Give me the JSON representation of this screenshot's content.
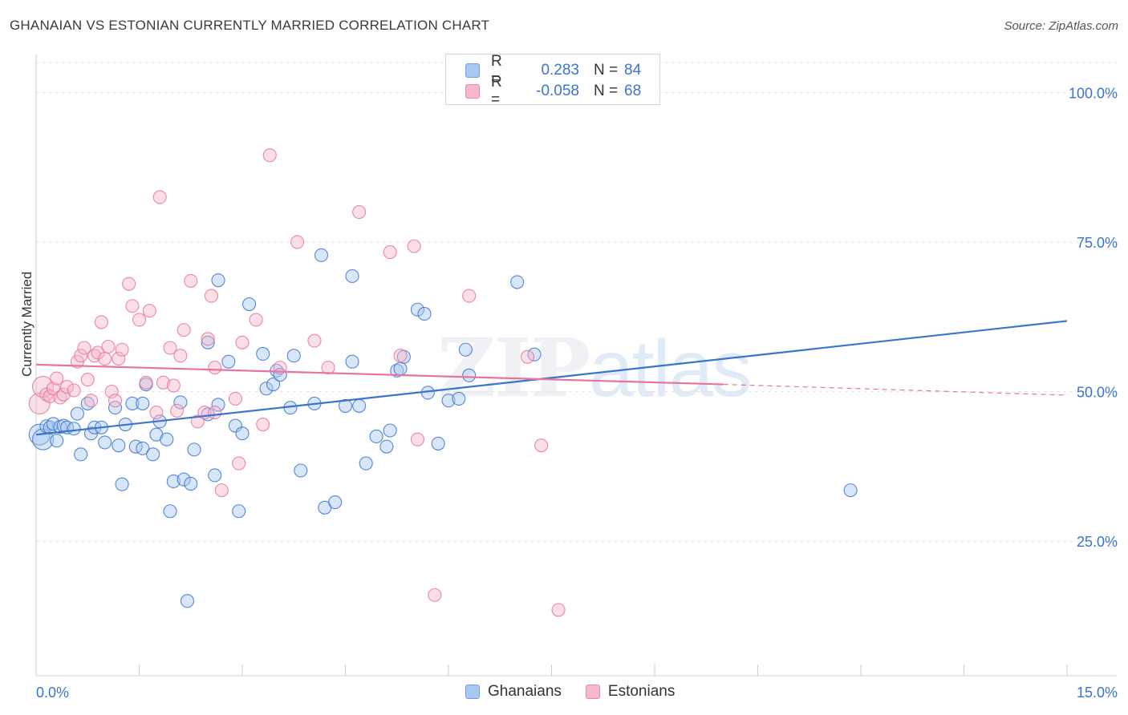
{
  "header": {
    "title": "GHANAIAN VS ESTONIAN CURRENTLY MARRIED CORRELATION CHART",
    "source": "Source: ZipAtlas.com"
  },
  "watermark": {
    "zip": "ZIP",
    "atlas": "atlas"
  },
  "legend": {
    "rows": [
      {
        "r_label": "R =",
        "r_value": "0.283",
        "n_label": "N =",
        "n_value": "84",
        "color": "#a9c8f0"
      },
      {
        "r_label": "R =",
        "r_value": "-0.058",
        "n_label": "N =",
        "n_value": "68",
        "color": "#f5b8cc"
      }
    ]
  },
  "bottom_legend": {
    "items": [
      {
        "label": "Ghanaians",
        "color": "#a9c8f0"
      },
      {
        "label": "Estonians",
        "color": "#f5b8cc"
      }
    ]
  },
  "chart_data": {
    "type": "scatter",
    "title": "GHANAIAN VS ESTONIAN CURRENTLY MARRIED CORRELATION CHART",
    "xlabel": "",
    "ylabel": "Currently Married",
    "xlim": [
      0,
      15
    ],
    "ylim": [
      2.5,
      105
    ],
    "x_tick_labels": [
      "0.0%",
      "15.0%"
    ],
    "y_ticks": [
      25,
      50,
      75,
      100
    ],
    "y_tick_labels": [
      "25.0%",
      "50.0%",
      "75.0%",
      "100.0%"
    ],
    "series": [
      {
        "name": "Ghanaians",
        "color": "#3a74cf",
        "fill": "#a9c8f0",
        "trend": {
          "x": [
            0,
            15
          ],
          "y": [
            42.8,
            61.8
          ]
        },
        "points": [
          [
            0.05,
            42.8
          ],
          [
            0.1,
            42.0
          ],
          [
            0.15,
            44.2
          ],
          [
            0.2,
            44.0
          ],
          [
            0.25,
            44.6
          ],
          [
            0.3,
            41.8
          ],
          [
            0.35,
            44.1
          ],
          [
            0.4,
            44.3
          ],
          [
            0.45,
            44.0
          ],
          [
            0.55,
            43.8
          ],
          [
            0.6,
            46.3
          ],
          [
            0.75,
            48.0
          ],
          [
            0.65,
            39.5
          ],
          [
            0.8,
            43.0
          ],
          [
            0.85,
            44.0
          ],
          [
            0.95,
            44.0
          ],
          [
            1.0,
            41.5
          ],
          [
            1.15,
            47.3
          ],
          [
            1.2,
            41.0
          ],
          [
            1.25,
            34.5
          ],
          [
            1.3,
            44.5
          ],
          [
            1.4,
            48.0
          ],
          [
            1.45,
            40.8
          ],
          [
            1.55,
            40.5
          ],
          [
            1.55,
            48.0
          ],
          [
            1.6,
            51.2
          ],
          [
            1.7,
            39.5
          ],
          [
            1.75,
            42.8
          ],
          [
            1.8,
            45.0
          ],
          [
            1.9,
            42.0
          ],
          [
            1.95,
            30.0
          ],
          [
            2.0,
            35.0
          ],
          [
            2.1,
            48.2
          ],
          [
            2.15,
            35.3
          ],
          [
            2.25,
            34.6
          ],
          [
            2.3,
            40.3
          ],
          [
            2.2,
            15.0
          ],
          [
            2.5,
            46.2
          ],
          [
            2.5,
            58.2
          ],
          [
            2.6,
            36.0
          ],
          [
            2.65,
            47.8
          ],
          [
            2.65,
            68.6
          ],
          [
            2.8,
            55.0
          ],
          [
            2.9,
            44.3
          ],
          [
            2.95,
            30.0
          ],
          [
            3.0,
            43.0
          ],
          [
            3.1,
            64.6
          ],
          [
            3.3,
            56.3
          ],
          [
            3.35,
            50.5
          ],
          [
            3.45,
            51.2
          ],
          [
            3.5,
            53.5
          ],
          [
            3.55,
            52.8
          ],
          [
            3.7,
            47.3
          ],
          [
            3.75,
            56.0
          ],
          [
            3.85,
            36.8
          ],
          [
            4.05,
            48.0
          ],
          [
            4.15,
            72.8
          ],
          [
            4.2,
            30.6
          ],
          [
            4.35,
            31.5
          ],
          [
            4.5,
            47.6
          ],
          [
            4.6,
            55.0
          ],
          [
            4.7,
            47.6
          ],
          [
            4.6,
            69.3
          ],
          [
            4.8,
            38.0
          ],
          [
            4.95,
            42.5
          ],
          [
            5.1,
            40.8
          ],
          [
            5.15,
            43.5
          ],
          [
            5.25,
            53.5
          ],
          [
            5.3,
            53.8
          ],
          [
            5.35,
            55.8
          ],
          [
            5.55,
            63.7
          ],
          [
            5.65,
            63.0
          ],
          [
            5.7,
            49.8
          ],
          [
            5.85,
            41.3
          ],
          [
            6.0,
            48.5
          ],
          [
            6.15,
            48.8
          ],
          [
            6.25,
            57.0
          ],
          [
            6.3,
            52.7
          ],
          [
            7.0,
            68.3
          ],
          [
            7.25,
            56.2
          ],
          [
            11.85,
            33.5
          ]
        ]
      },
      {
        "name": "Estonians",
        "color": "#e8739b",
        "fill": "#f5b8cc",
        "trend": {
          "x": [
            0,
            10
          ],
          "y": [
            54.5,
            51.2
          ]
        },
        "trend_dashed": {
          "x": [
            10,
            15
          ],
          "y": [
            51.2,
            49.4
          ]
        },
        "points": [
          [
            0.05,
            48.0
          ],
          [
            0.1,
            50.8
          ],
          [
            0.15,
            49.5
          ],
          [
            0.2,
            49.2
          ],
          [
            0.25,
            50.5
          ],
          [
            0.3,
            52.2
          ],
          [
            0.35,
            49.0
          ],
          [
            0.4,
            49.5
          ],
          [
            0.45,
            50.8
          ],
          [
            0.55,
            50.2
          ],
          [
            0.6,
            55.0
          ],
          [
            0.65,
            56.0
          ],
          [
            0.7,
            57.3
          ],
          [
            0.75,
            52.0
          ],
          [
            0.8,
            48.5
          ],
          [
            0.85,
            56.0
          ],
          [
            0.9,
            56.5
          ],
          [
            0.95,
            61.6
          ],
          [
            1.0,
            55.5
          ],
          [
            1.05,
            57.5
          ],
          [
            1.1,
            50.0
          ],
          [
            1.15,
            48.5
          ],
          [
            1.2,
            55.5
          ],
          [
            1.25,
            57.0
          ],
          [
            1.35,
            68.0
          ],
          [
            1.4,
            64.3
          ],
          [
            1.5,
            62.0
          ],
          [
            1.6,
            51.5
          ],
          [
            1.65,
            63.5
          ],
          [
            1.75,
            46.5
          ],
          [
            1.8,
            82.5
          ],
          [
            1.85,
            51.5
          ],
          [
            1.95,
            57.3
          ],
          [
            2.0,
            51.0
          ],
          [
            2.05,
            46.8
          ],
          [
            2.1,
            56.0
          ],
          [
            2.15,
            60.3
          ],
          [
            2.25,
            68.5
          ],
          [
            2.35,
            45.0
          ],
          [
            2.45,
            46.5
          ],
          [
            2.5,
            58.8
          ],
          [
            2.55,
            66.0
          ],
          [
            2.6,
            54.0
          ],
          [
            2.6,
            46.5
          ],
          [
            2.7,
            33.5
          ],
          [
            2.9,
            48.8
          ],
          [
            2.95,
            38.0
          ],
          [
            3.0,
            58.2
          ],
          [
            3.2,
            62.0
          ],
          [
            3.3,
            44.5
          ],
          [
            3.4,
            89.5
          ],
          [
            3.55,
            54.0
          ],
          [
            3.8,
            75.0
          ],
          [
            4.05,
            58.5
          ],
          [
            4.25,
            54.0
          ],
          [
            4.7,
            80.0
          ],
          [
            5.15,
            73.3
          ],
          [
            5.3,
            56.0
          ],
          [
            5.5,
            74.3
          ],
          [
            5.55,
            42.0
          ],
          [
            5.8,
            16.0
          ],
          [
            6.3,
            66.0
          ],
          [
            7.15,
            55.8
          ],
          [
            7.35,
            41.0
          ],
          [
            7.6,
            13.5
          ]
        ]
      }
    ]
  }
}
